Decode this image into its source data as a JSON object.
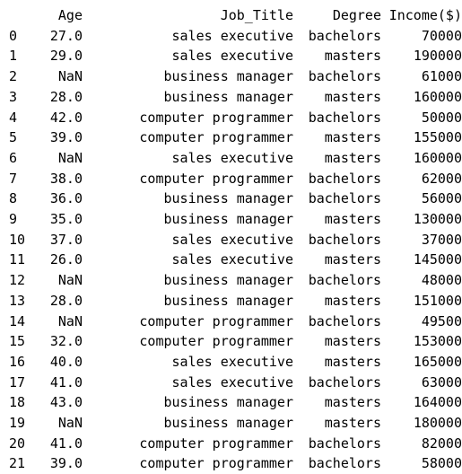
{
  "dataframe": {
    "columns": [
      "",
      "Age",
      "Job_Title",
      "Degree",
      "Income($)"
    ],
    "rows": [
      [
        "0",
        "27.0",
        "sales executive",
        "bachelors",
        "70000"
      ],
      [
        "1",
        "29.0",
        "sales executive",
        "masters",
        "190000"
      ],
      [
        "2",
        "NaN",
        "business manager",
        "bachelors",
        "61000"
      ],
      [
        "3",
        "28.0",
        "business manager",
        "masters",
        "160000"
      ],
      [
        "4",
        "42.0",
        "computer programmer",
        "bachelors",
        "50000"
      ],
      [
        "5",
        "39.0",
        "computer programmer",
        "masters",
        "155000"
      ],
      [
        "6",
        "NaN",
        "sales executive",
        "masters",
        "160000"
      ],
      [
        "7",
        "38.0",
        "computer programmer",
        "bachelors",
        "62000"
      ],
      [
        "8",
        "36.0",
        "business manager",
        "bachelors",
        "56000"
      ],
      [
        "9",
        "35.0",
        "business manager",
        "masters",
        "130000"
      ],
      [
        "10",
        "37.0",
        "sales executive",
        "bachelors",
        "37000"
      ],
      [
        "11",
        "26.0",
        "sales executive",
        "masters",
        "145000"
      ],
      [
        "12",
        "NaN",
        "business manager",
        "bachelors",
        "48000"
      ],
      [
        "13",
        "28.0",
        "business manager",
        "masters",
        "151000"
      ],
      [
        "14",
        "NaN",
        "computer programmer",
        "bachelors",
        "49500"
      ],
      [
        "15",
        "32.0",
        "computer programmer",
        "masters",
        "153000"
      ],
      [
        "16",
        "40.0",
        "sales executive",
        "masters",
        "165000"
      ],
      [
        "17",
        "41.0",
        "sales executive",
        "bachelors",
        "63000"
      ],
      [
        "18",
        "43.0",
        "business manager",
        "masters",
        "164000"
      ],
      [
        "19",
        "NaN",
        "business manager",
        "masters",
        "180000"
      ],
      [
        "20",
        "41.0",
        "computer programmer",
        "bachelors",
        "82000"
      ],
      [
        "21",
        "39.0",
        "computer programmer",
        "bachelors",
        "58000"
      ]
    ]
  }
}
